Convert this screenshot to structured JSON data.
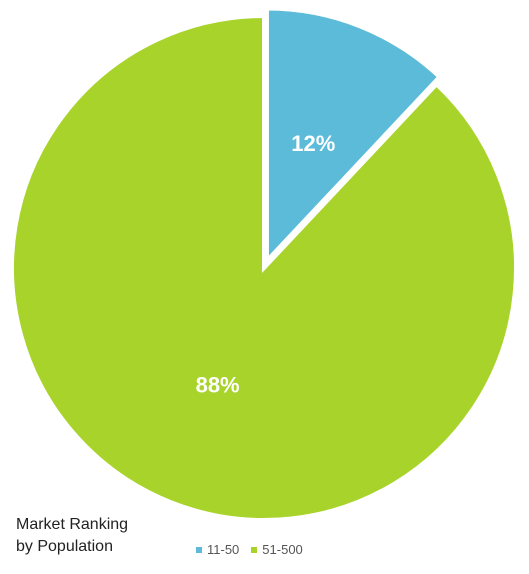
{
  "chart_data": {
    "type": "pie",
    "title_lines": [
      "Market Ranking",
      "by Population"
    ],
    "slices": [
      {
        "name": "11-50",
        "value": 12,
        "label": "12%",
        "color": "#5bbbd8"
      },
      {
        "name": "51-500",
        "value": 88,
        "label": "88%",
        "color": "#a8d32a"
      }
    ],
    "start_angle_deg": 0,
    "exploded_slice": "11-50",
    "legend_placement": "bottom"
  }
}
